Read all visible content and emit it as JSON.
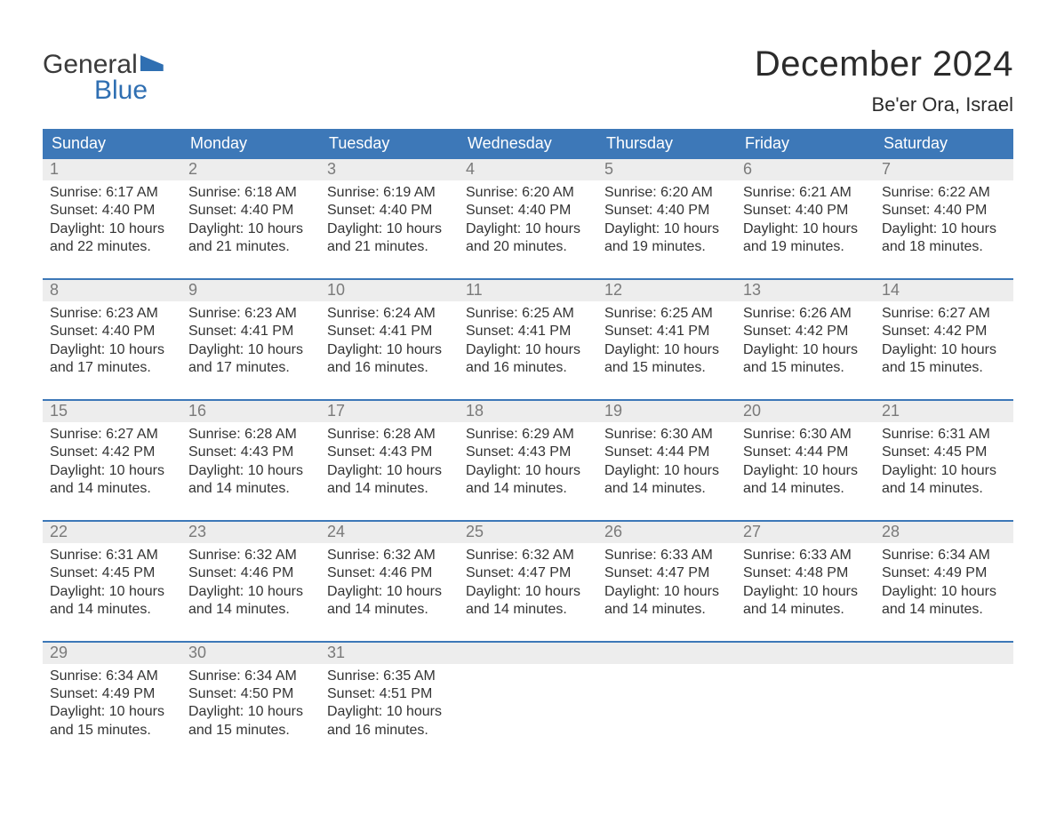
{
  "logo": {
    "top": "General",
    "bottom": "Blue"
  },
  "title": "December 2024",
  "location": "Be'er Ora, Israel",
  "header_bg": "#3d78b8",
  "header_text": "#ffffff",
  "daynum_bg": "#ededed",
  "daynum_color": "#7a7a7a",
  "body_text_color": "#333333",
  "week_border": "#3d78b8",
  "dayNames": [
    "Sunday",
    "Monday",
    "Tuesday",
    "Wednesday",
    "Thursday",
    "Friday",
    "Saturday"
  ],
  "weeks": [
    [
      {
        "n": "1",
        "sr": "Sunrise: 6:17 AM",
        "ss": "Sunset: 4:40 PM",
        "d1": "Daylight: 10 hours",
        "d2": "and 22 minutes."
      },
      {
        "n": "2",
        "sr": "Sunrise: 6:18 AM",
        "ss": "Sunset: 4:40 PM",
        "d1": "Daylight: 10 hours",
        "d2": "and 21 minutes."
      },
      {
        "n": "3",
        "sr": "Sunrise: 6:19 AM",
        "ss": "Sunset: 4:40 PM",
        "d1": "Daylight: 10 hours",
        "d2": "and 21 minutes."
      },
      {
        "n": "4",
        "sr": "Sunrise: 6:20 AM",
        "ss": "Sunset: 4:40 PM",
        "d1": "Daylight: 10 hours",
        "d2": "and 20 minutes."
      },
      {
        "n": "5",
        "sr": "Sunrise: 6:20 AM",
        "ss": "Sunset: 4:40 PM",
        "d1": "Daylight: 10 hours",
        "d2": "and 19 minutes."
      },
      {
        "n": "6",
        "sr": "Sunrise: 6:21 AM",
        "ss": "Sunset: 4:40 PM",
        "d1": "Daylight: 10 hours",
        "d2": "and 19 minutes."
      },
      {
        "n": "7",
        "sr": "Sunrise: 6:22 AM",
        "ss": "Sunset: 4:40 PM",
        "d1": "Daylight: 10 hours",
        "d2": "and 18 minutes."
      }
    ],
    [
      {
        "n": "8",
        "sr": "Sunrise: 6:23 AM",
        "ss": "Sunset: 4:40 PM",
        "d1": "Daylight: 10 hours",
        "d2": "and 17 minutes."
      },
      {
        "n": "9",
        "sr": "Sunrise: 6:23 AM",
        "ss": "Sunset: 4:41 PM",
        "d1": "Daylight: 10 hours",
        "d2": "and 17 minutes."
      },
      {
        "n": "10",
        "sr": "Sunrise: 6:24 AM",
        "ss": "Sunset: 4:41 PM",
        "d1": "Daylight: 10 hours",
        "d2": "and 16 minutes."
      },
      {
        "n": "11",
        "sr": "Sunrise: 6:25 AM",
        "ss": "Sunset: 4:41 PM",
        "d1": "Daylight: 10 hours",
        "d2": "and 16 minutes."
      },
      {
        "n": "12",
        "sr": "Sunrise: 6:25 AM",
        "ss": "Sunset: 4:41 PM",
        "d1": "Daylight: 10 hours",
        "d2": "and 15 minutes."
      },
      {
        "n": "13",
        "sr": "Sunrise: 6:26 AM",
        "ss": "Sunset: 4:42 PM",
        "d1": "Daylight: 10 hours",
        "d2": "and 15 minutes."
      },
      {
        "n": "14",
        "sr": "Sunrise: 6:27 AM",
        "ss": "Sunset: 4:42 PM",
        "d1": "Daylight: 10 hours",
        "d2": "and 15 minutes."
      }
    ],
    [
      {
        "n": "15",
        "sr": "Sunrise: 6:27 AM",
        "ss": "Sunset: 4:42 PM",
        "d1": "Daylight: 10 hours",
        "d2": "and 14 minutes."
      },
      {
        "n": "16",
        "sr": "Sunrise: 6:28 AM",
        "ss": "Sunset: 4:43 PM",
        "d1": "Daylight: 10 hours",
        "d2": "and 14 minutes."
      },
      {
        "n": "17",
        "sr": "Sunrise: 6:28 AM",
        "ss": "Sunset: 4:43 PM",
        "d1": "Daylight: 10 hours",
        "d2": "and 14 minutes."
      },
      {
        "n": "18",
        "sr": "Sunrise: 6:29 AM",
        "ss": "Sunset: 4:43 PM",
        "d1": "Daylight: 10 hours",
        "d2": "and 14 minutes."
      },
      {
        "n": "19",
        "sr": "Sunrise: 6:30 AM",
        "ss": "Sunset: 4:44 PM",
        "d1": "Daylight: 10 hours",
        "d2": "and 14 minutes."
      },
      {
        "n": "20",
        "sr": "Sunrise: 6:30 AM",
        "ss": "Sunset: 4:44 PM",
        "d1": "Daylight: 10 hours",
        "d2": "and 14 minutes."
      },
      {
        "n": "21",
        "sr": "Sunrise: 6:31 AM",
        "ss": "Sunset: 4:45 PM",
        "d1": "Daylight: 10 hours",
        "d2": "and 14 minutes."
      }
    ],
    [
      {
        "n": "22",
        "sr": "Sunrise: 6:31 AM",
        "ss": "Sunset: 4:45 PM",
        "d1": "Daylight: 10 hours",
        "d2": "and 14 minutes."
      },
      {
        "n": "23",
        "sr": "Sunrise: 6:32 AM",
        "ss": "Sunset: 4:46 PM",
        "d1": "Daylight: 10 hours",
        "d2": "and 14 minutes."
      },
      {
        "n": "24",
        "sr": "Sunrise: 6:32 AM",
        "ss": "Sunset: 4:46 PM",
        "d1": "Daylight: 10 hours",
        "d2": "and 14 minutes."
      },
      {
        "n": "25",
        "sr": "Sunrise: 6:32 AM",
        "ss": "Sunset: 4:47 PM",
        "d1": "Daylight: 10 hours",
        "d2": "and 14 minutes."
      },
      {
        "n": "26",
        "sr": "Sunrise: 6:33 AM",
        "ss": "Sunset: 4:47 PM",
        "d1": "Daylight: 10 hours",
        "d2": "and 14 minutes."
      },
      {
        "n": "27",
        "sr": "Sunrise: 6:33 AM",
        "ss": "Sunset: 4:48 PM",
        "d1": "Daylight: 10 hours",
        "d2": "and 14 minutes."
      },
      {
        "n": "28",
        "sr": "Sunrise: 6:34 AM",
        "ss": "Sunset: 4:49 PM",
        "d1": "Daylight: 10 hours",
        "d2": "and 14 minutes."
      }
    ],
    [
      {
        "n": "29",
        "sr": "Sunrise: 6:34 AM",
        "ss": "Sunset: 4:49 PM",
        "d1": "Daylight: 10 hours",
        "d2": "and 15 minutes."
      },
      {
        "n": "30",
        "sr": "Sunrise: 6:34 AM",
        "ss": "Sunset: 4:50 PM",
        "d1": "Daylight: 10 hours",
        "d2": "and 15 minutes."
      },
      {
        "n": "31",
        "sr": "Sunrise: 6:35 AM",
        "ss": "Sunset: 4:51 PM",
        "d1": "Daylight: 10 hours",
        "d2": "and 16 minutes."
      },
      {
        "empty": true
      },
      {
        "empty": true
      },
      {
        "empty": true
      },
      {
        "empty": true
      }
    ]
  ]
}
